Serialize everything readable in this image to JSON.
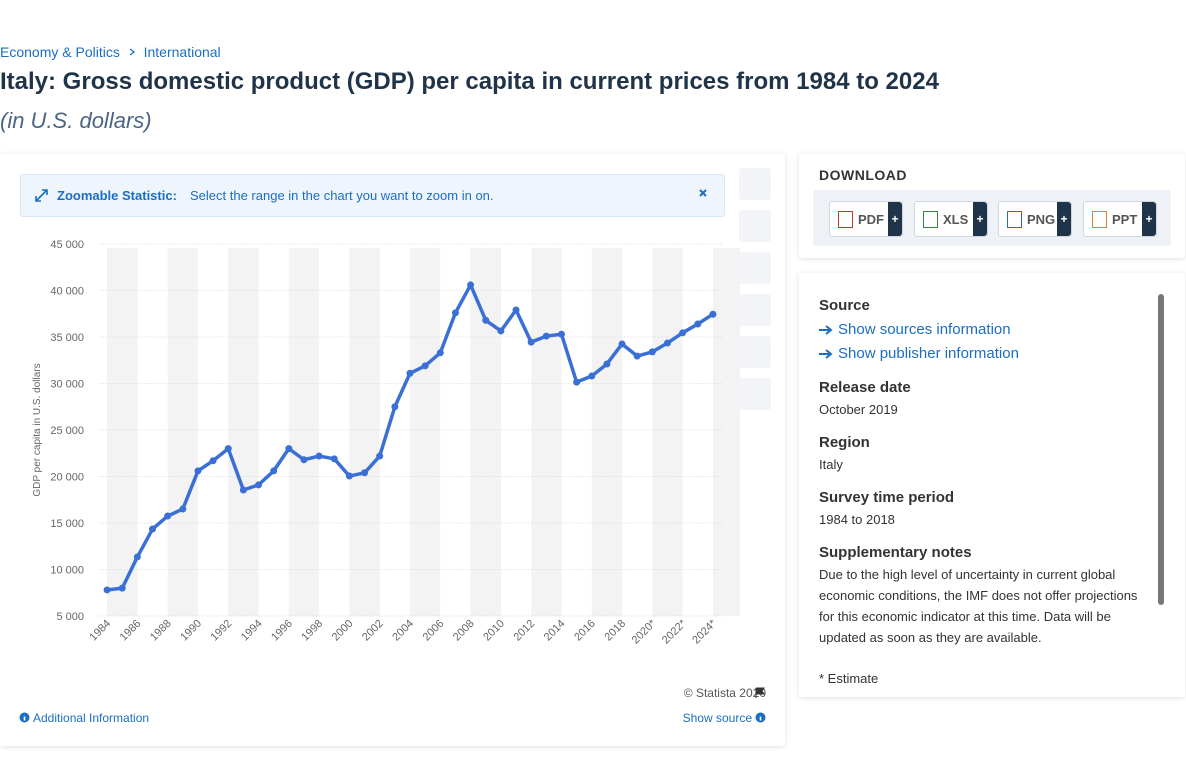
{
  "breadcrumb": [
    "Economy & Politics",
    "International"
  ],
  "header": {
    "title": "Italy: Gross domestic product (GDP) per capita in current prices from 1984 to 2024",
    "subtitle": "(in U.S. dollars)"
  },
  "zoom_notice": {
    "label": "Zoomable Statistic:",
    "text": "Select the range in the chart you want to zoom in on."
  },
  "chart_data": {
    "type": "line",
    "y_axis_label": "GDP per capita in U.S. dollars",
    "color": "#3a6fd6",
    "grid": true,
    "x": [
      1984,
      1985,
      1986,
      1987,
      1988,
      1989,
      1990,
      1991,
      1992,
      1993,
      1994,
      1995,
      1996,
      1997,
      1998,
      1999,
      2000,
      2001,
      2002,
      2003,
      2004,
      2005,
      2006,
      2007,
      2008,
      2009,
      2010,
      2011,
      2012,
      2013,
      2014,
      2015,
      2016,
      2017,
      2018,
      2019,
      2020,
      2021,
      2022,
      2023,
      2024
    ],
    "values": [
      7800,
      8000,
      11350,
      14350,
      15750,
      16500,
      20600,
      21700,
      23000,
      18550,
      19100,
      20600,
      23000,
      21800,
      22200,
      21900,
      20050,
      20400,
      22200,
      27500,
      31100,
      31900,
      33300,
      37600,
      40600,
      36800,
      35650,
      37900,
      34450,
      35100,
      35300,
      30150,
      30800,
      32100,
      34250,
      32950,
      33400,
      34350,
      35450,
      36400,
      37450
    ],
    "xlim": [
      1983.5,
      2024.5
    ],
    "xticks": [
      1984,
      1986,
      1988,
      1990,
      1992,
      1994,
      1996,
      1998,
      2000,
      2002,
      2004,
      2006,
      2008,
      2010,
      2012,
      2014,
      2016,
      2018,
      {
        "value": 2020,
        "label": "2020*"
      },
      {
        "value": 2022,
        "label": "2022*"
      },
      {
        "value": 2024,
        "label": "2024*"
      }
    ],
    "ylim": [
      5000,
      45000
    ],
    "yticks": [
      {
        "value": 5000,
        "label": "5 000"
      },
      {
        "value": 10000,
        "label": "10 000"
      },
      {
        "value": 15000,
        "label": "15 000"
      },
      {
        "value": 20000,
        "label": "20 000"
      },
      {
        "value": 25000,
        "label": "25 000"
      },
      {
        "value": 30000,
        "label": "30 000"
      },
      {
        "value": 35000,
        "label": "35 000"
      },
      {
        "value": 40000,
        "label": "40 000"
      },
      {
        "value": 45000,
        "label": "45 000"
      }
    ]
  },
  "footer": {
    "copyright": "© Statista 2020",
    "additional": "Additional Information",
    "show_source": "Show source"
  },
  "download": {
    "title": "DOWNLOAD",
    "formats": [
      "PDF",
      "XLS",
      "PNG",
      "PPT"
    ],
    "plus": "+"
  },
  "details": {
    "source_heading": "Source",
    "links": [
      "Show sources information",
      "Show publisher information"
    ],
    "sections": [
      {
        "heading": "Release date",
        "text": "October 2019"
      },
      {
        "heading": "Region",
        "text": "Italy"
      },
      {
        "heading": "Survey time period",
        "text": "1984 to 2018"
      }
    ],
    "notes_heading": "Supplementary notes",
    "notes": "Due to the high level of uncertainty in current global economic conditions, the IMF does not offer projections for this economic indicator at this time. Data will be updated as soon as they are available.",
    "footnote": "* Estimate"
  }
}
